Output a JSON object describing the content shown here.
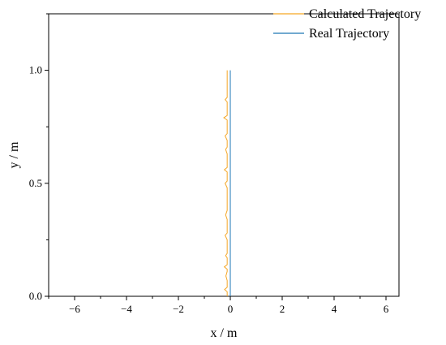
{
  "chart_data": {
    "type": "line",
    "xlabel": "x / m",
    "ylabel": "y / m",
    "xlim": [
      -7,
      6.5
    ],
    "ylim": [
      0,
      1.25
    ],
    "x_ticks": [
      -6,
      -4,
      -2,
      0,
      2,
      4,
      6
    ],
    "x_tick_labels": [
      "−6",
      "−4",
      "−2",
      "0",
      "2",
      "4",
      "6"
    ],
    "y_ticks": [
      0,
      0.5,
      1
    ],
    "y_tick_labels": [
      "0.0",
      "0.5",
      "1.0"
    ],
    "legend_position": "top-right",
    "grid": false,
    "series": [
      {
        "name": "Calculated Trajectory",
        "color": "#f5a623",
        "points": [
          [
            -0.12,
            0.0
          ],
          [
            -0.12,
            0.02
          ],
          [
            -0.22,
            0.03
          ],
          [
            -0.12,
            0.04
          ],
          [
            -0.12,
            0.07
          ],
          [
            -0.17,
            0.09
          ],
          [
            -0.12,
            0.11
          ],
          [
            -0.12,
            0.12
          ],
          [
            -0.23,
            0.13
          ],
          [
            -0.12,
            0.14
          ],
          [
            -0.12,
            0.17
          ],
          [
            -0.18,
            0.18
          ],
          [
            -0.12,
            0.19
          ],
          [
            -0.12,
            0.25
          ],
          [
            -0.2,
            0.27
          ],
          [
            -0.12,
            0.28
          ],
          [
            -0.12,
            0.34
          ],
          [
            -0.18,
            0.36
          ],
          [
            -0.12,
            0.38
          ],
          [
            -0.12,
            0.48
          ],
          [
            -0.2,
            0.5
          ],
          [
            -0.12,
            0.51
          ],
          [
            -0.12,
            0.55
          ],
          [
            -0.23,
            0.56
          ],
          [
            -0.12,
            0.57
          ],
          [
            -0.12,
            0.63
          ],
          [
            -0.18,
            0.65
          ],
          [
            -0.12,
            0.66
          ],
          [
            -0.12,
            0.69
          ],
          [
            -0.2,
            0.71
          ],
          [
            -0.12,
            0.72
          ],
          [
            -0.12,
            0.78
          ],
          [
            -0.25,
            0.79
          ],
          [
            -0.12,
            0.8
          ],
          [
            -0.12,
            0.86
          ],
          [
            -0.2,
            0.87
          ],
          [
            -0.12,
            0.88
          ],
          [
            -0.12,
            1.0
          ]
        ]
      },
      {
        "name": "Real Trajectory",
        "color": "#1f77b4",
        "points": [
          [
            0.0,
            0.0
          ],
          [
            0.0,
            1.0
          ]
        ]
      }
    ]
  }
}
